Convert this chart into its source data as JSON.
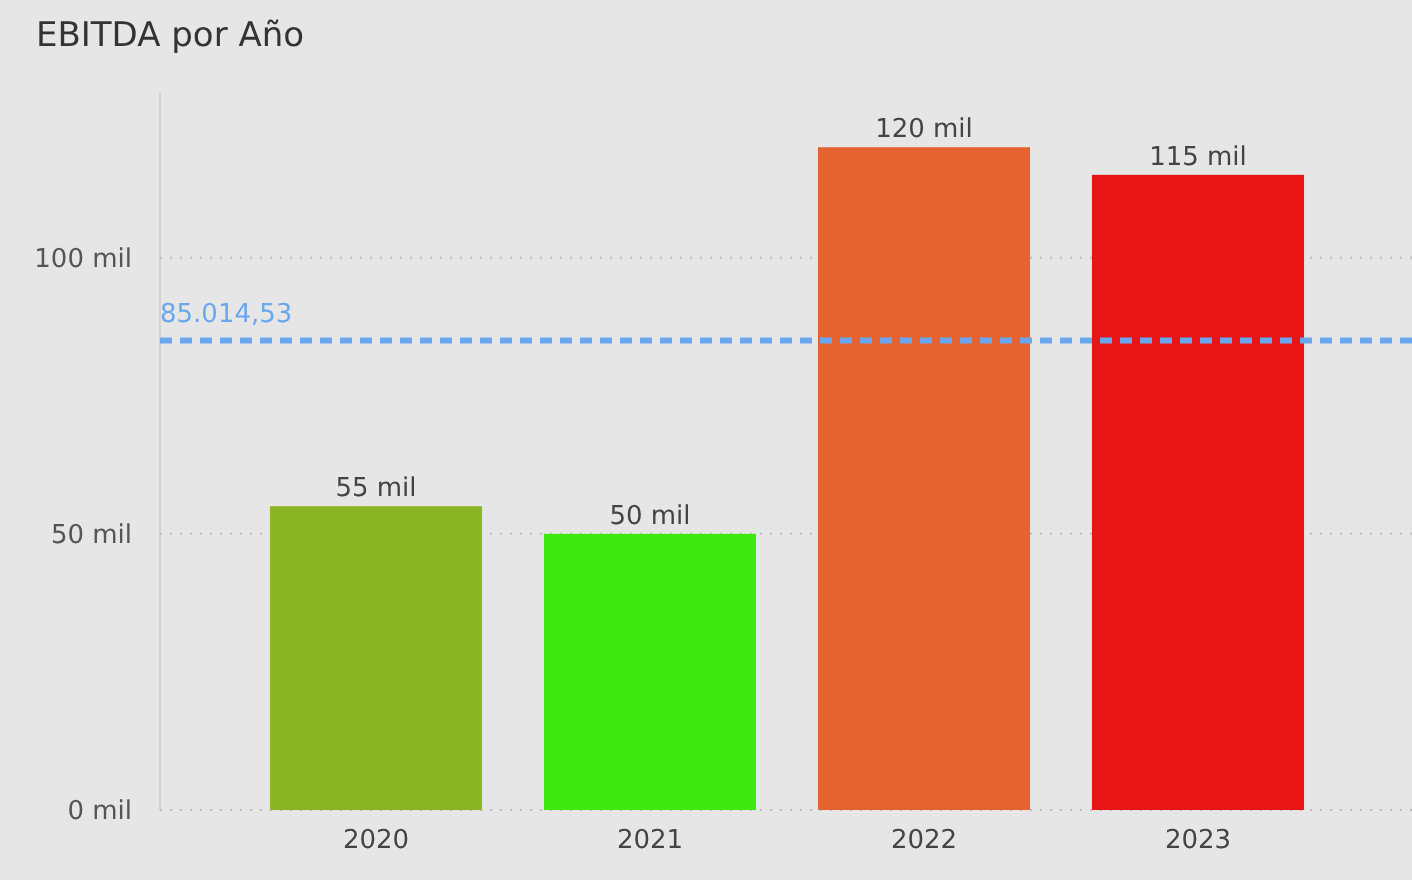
{
  "chart_data": {
    "type": "bar",
    "title": "EBITDA por Año",
    "categories": [
      "2020",
      "2021",
      "2022",
      "2023"
    ],
    "values": [
      55,
      50,
      120,
      115
    ],
    "colors": [
      "#8ab523",
      "#3fe80f",
      "#e46331",
      "#e81416"
    ],
    "value_labels": [
      "55 mil",
      "50 mil",
      "120 mil",
      "115 mil"
    ],
    "ylim": [
      0,
      130
    ],
    "yticks": [
      {
        "value": 0,
        "label": "0 mil"
      },
      {
        "value": 50,
        "label": "50 mil"
      },
      {
        "value": 100,
        "label": "100 mil"
      }
    ],
    "grid": "y",
    "ref_lines": [
      {
        "axis": "y",
        "value": 85.01453,
        "label": "85.014,53",
        "color": "#6aa7ef",
        "line_style": "dashed"
      }
    ]
  }
}
